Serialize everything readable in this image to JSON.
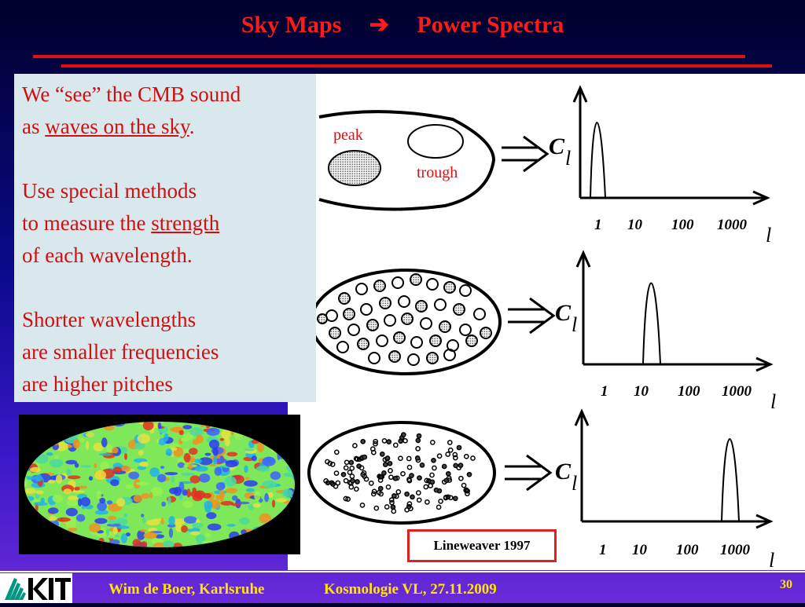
{
  "slide": {
    "title_left": "Sky Maps",
    "title_arrow": "➔",
    "title_right": "Power Spectra"
  },
  "textbox": {
    "p1_line1": "We “see” the CMB sound",
    "p1_as": "as ",
    "p1_link": "waves on the sky",
    "p1_end": ".",
    "p2_line1": "Use special methods",
    "p2_line2a": "to measure the ",
    "p2_line2b": "strength",
    "p2_line3": "of each wavelength.",
    "p3_line1": "Shorter wavelengths",
    "p3_line2": "are smaller frequencies",
    "p3_line3": "are higher pitches"
  },
  "diagram": {
    "peak_label": "peak",
    "trough_label": "trough",
    "y_label_main": "C",
    "y_label_sub": "l",
    "x_label": "l",
    "ticks": [
      "1",
      "10",
      "100",
      "1000"
    ]
  },
  "source_label": "Lineweaver 1997",
  "footer": {
    "author": "Wim de Boer, Karlsruhe",
    "course": "Kosmologie VL,  27.11.2009",
    "page": "30"
  },
  "colors": {
    "title": "#ff1a1a",
    "text": "#d01010",
    "textbox_bg": "#d8e8ec",
    "footer_text": "#ffe600"
  }
}
